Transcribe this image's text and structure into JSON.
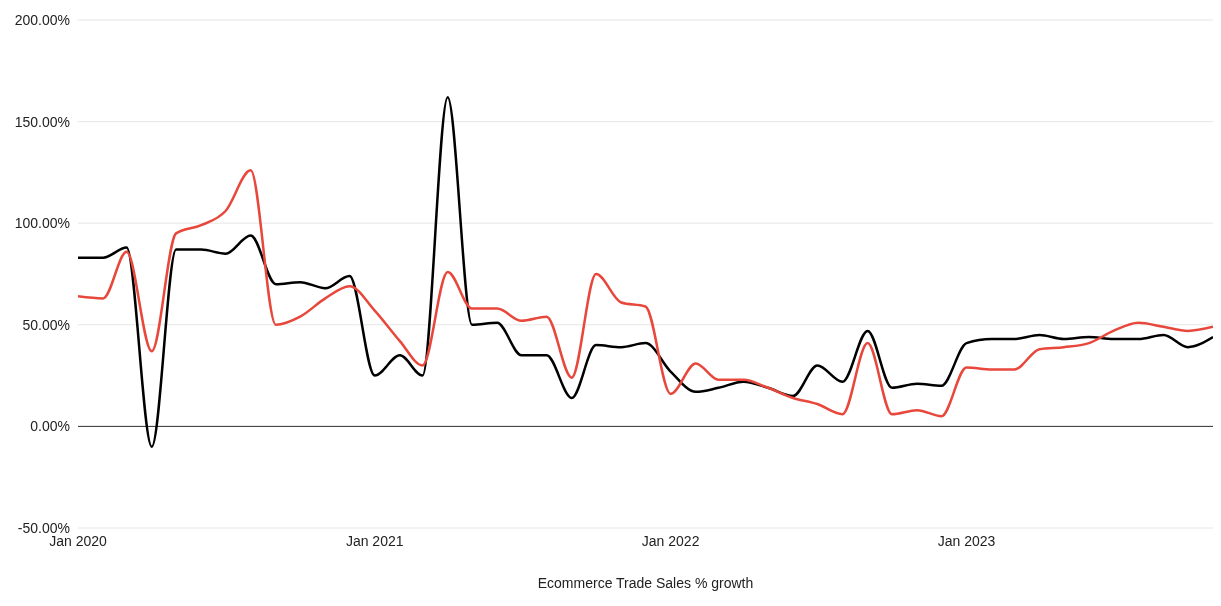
{
  "chart_data": {
    "type": "line",
    "xlabel": "Ecommerce Trade Sales % growth",
    "x": [
      "2020-01",
      "2020-02",
      "2020-03",
      "2020-04",
      "2020-05",
      "2020-06",
      "2020-07",
      "2020-08",
      "2020-09",
      "2020-10",
      "2020-11",
      "2020-12",
      "2021-01",
      "2021-02",
      "2021-03",
      "2021-04",
      "2021-05",
      "2021-06",
      "2021-07",
      "2021-08",
      "2021-09",
      "2021-10",
      "2021-11",
      "2021-12",
      "2022-01",
      "2022-02",
      "2022-03",
      "2022-04",
      "2022-05",
      "2022-06",
      "2022-07",
      "2022-08",
      "2022-09",
      "2022-10",
      "2022-11",
      "2022-12",
      "2023-01",
      "2023-02",
      "2023-03",
      "2023-04",
      "2023-05",
      "2023-06",
      "2023-07",
      "2023-08",
      "2023-09",
      "2023-10",
      "2023-11"
    ],
    "series": [
      {
        "color": "#000000",
        "values": [
          83,
          83,
          88,
          -10,
          87,
          87,
          85,
          94,
          70,
          71,
          68,
          74,
          25,
          35,
          25,
          162,
          50,
          51,
          35,
          35,
          14,
          40,
          39,
          41,
          27,
          17,
          19,
          22,
          19,
          15,
          30,
          22,
          47,
          19,
          21,
          20,
          41,
          43,
          43,
          45,
          43,
          44,
          43,
          43,
          45,
          39,
          44
        ]
      },
      {
        "color": "#e8473b",
        "values": [
          64,
          63,
          86,
          37,
          95,
          99,
          106,
          126,
          50,
          54,
          63,
          69,
          57,
          42,
          30,
          76,
          58,
          58,
          52,
          54,
          24,
          75,
          61,
          59,
          16,
          31,
          23,
          23,
          19,
          14,
          11,
          6,
          41,
          6,
          8,
          5,
          29,
          28,
          28,
          38,
          39,
          41,
          47,
          51,
          49,
          47,
          49
        ]
      }
    ],
    "xlim": [
      "2020-01",
      "2023-11"
    ],
    "xticks": [
      {
        "value": "2020-01",
        "label": "Jan 2020"
      },
      {
        "value": "2021-01",
        "label": "Jan 2021"
      },
      {
        "value": "2022-01",
        "label": "Jan 2022"
      },
      {
        "value": "2023-01",
        "label": "Jan 2023"
      }
    ],
    "ylim": [
      -50,
      200
    ],
    "yticks": [
      {
        "value": -50,
        "label": "-50.00%"
      },
      {
        "value": 0,
        "label": "0.00%"
      },
      {
        "value": 50,
        "label": "50.00%"
      },
      {
        "value": 100,
        "label": "100.00%"
      },
      {
        "value": 150,
        "label": "150.00%"
      },
      {
        "value": 200,
        "label": "200.00%"
      }
    ],
    "grid": "y",
    "marker": "none",
    "line_style": "solid",
    "ref_lines": [
      {
        "axis": "y",
        "value": 0,
        "color": "#333333"
      }
    ]
  }
}
